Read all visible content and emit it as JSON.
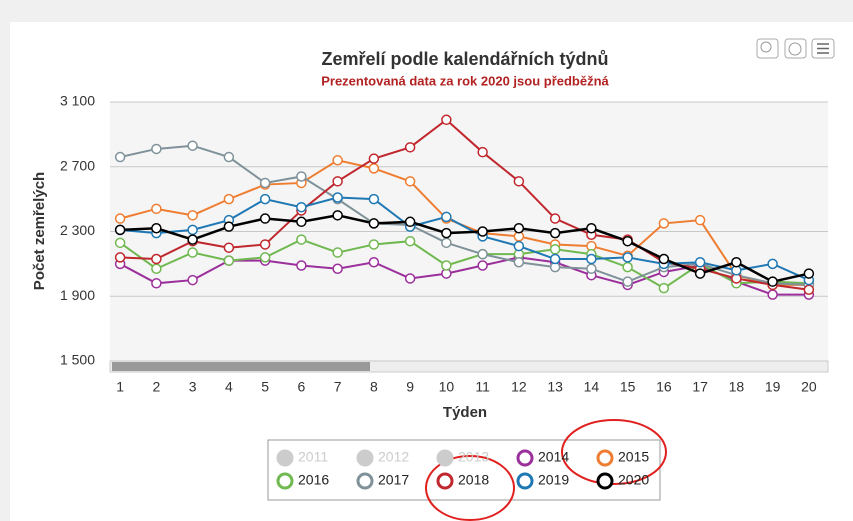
{
  "chart_data": {
    "type": "line",
    "title": "Zemřelí podle kalendářních týdnů",
    "subtitle": "Prezentovaná data za rok 2020 jsou předběžná",
    "x_label": "Týden",
    "y_label": "Počet zemřelých",
    "categories": [
      "1",
      "2",
      "3",
      "4",
      "5",
      "6",
      "7",
      "8",
      "9",
      "10",
      "11",
      "12",
      "13",
      "14",
      "15",
      "16",
      "17",
      "18",
      "19",
      "20"
    ],
    "ylim": [
      1500,
      3100
    ],
    "yticks": [
      {
        "value": 1500,
        "label": "1 500"
      },
      {
        "value": 1900,
        "label": "1 900"
      },
      {
        "value": 2300,
        "label": "2 300"
      },
      {
        "value": 2700,
        "label": "2 700"
      },
      {
        "value": 3100,
        "label": "3 100"
      }
    ],
    "grid": true,
    "legend_hidden": [
      "2011",
      "2012",
      "2013"
    ],
    "series": [
      {
        "name": "2014",
        "color": "#9b2f9b",
        "values": [
          2100,
          1980,
          2000,
          2120,
          2120,
          2090,
          2070,
          2110,
          2010,
          2040,
          2090,
          2140,
          2110,
          2030,
          1970,
          2050,
          2090,
          1990,
          1910,
          1910
        ]
      },
      {
        "name": "2015",
        "color": "#ee7d31",
        "values": [
          2380,
          2440,
          2400,
          2500,
          2590,
          2600,
          2740,
          2690,
          2610,
          2380,
          2290,
          2270,
          2220,
          2210,
          2150,
          2350,
          2370,
          2030,
          1970,
          1970
        ]
      },
      {
        "name": "2016",
        "color": "#70b850",
        "values": [
          2230,
          2070,
          2170,
          2120,
          2140,
          2250,
          2170,
          2220,
          2240,
          2090,
          2160,
          2160,
          2190,
          2160,
          2080,
          1950,
          2100,
          1980,
          1990,
          1980
        ]
      },
      {
        "name": "2017",
        "color": "#7f9199",
        "values": [
          2760,
          2810,
          2830,
          2760,
          2600,
          2640,
          2500,
          2350,
          2340,
          2230,
          2160,
          2110,
          2080,
          2070,
          1990,
          2080,
          2100,
          2030,
          1980,
          1970
        ]
      },
      {
        "name": "2018",
        "color": "#c0272d",
        "values": [
          2140,
          2130,
          2240,
          2200,
          2220,
          2430,
          2610,
          2750,
          2820,
          2990,
          2790,
          2610,
          2380,
          2280,
          2250,
          2110,
          2070,
          2010,
          1970,
          1940
        ]
      },
      {
        "name": "2019",
        "color": "#1f78b4",
        "values": [
          2310,
          2290,
          2310,
          2370,
          2500,
          2450,
          2510,
          2500,
          2330,
          2390,
          2270,
          2210,
          2130,
          2130,
          2140,
          2100,
          2110,
          2060,
          2100,
          2000
        ]
      },
      {
        "name": "2020",
        "color": "#000000",
        "values": [
          2310,
          2320,
          2250,
          2330,
          2380,
          2360,
          2400,
          2350,
          2360,
          2290,
          2300,
          2320,
          2290,
          2320,
          2240,
          2130,
          2040,
          2110,
          1990,
          2040
        ]
      }
    ]
  }
}
